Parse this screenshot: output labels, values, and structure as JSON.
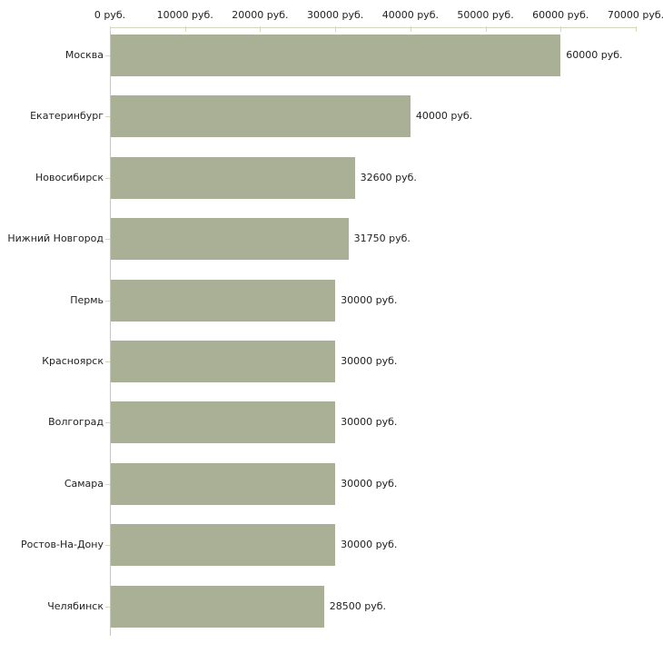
{
  "chart_data": {
    "type": "bar",
    "orientation": "horizontal",
    "categories": [
      "Москва",
      "Екатеринбург",
      "Новосибирск",
      "Нижний Новгород",
      "Пермь",
      "Красноярск",
      "Волгоград",
      "Самара",
      "Ростов-На-Дону",
      "Челябинск"
    ],
    "values": [
      60000,
      40000,
      32600,
      31750,
      30000,
      30000,
      30000,
      30000,
      30000,
      28500
    ],
    "value_labels": [
      "60000 руб.",
      "40000 руб.",
      "32600 руб.",
      "31750 руб.",
      "30000 руб.",
      "30000 руб.",
      "30000 руб.",
      "30000 руб.",
      "30000 руб.",
      "28500 руб."
    ],
    "xticks": [
      0,
      10000,
      20000,
      30000,
      40000,
      50000,
      60000,
      70000
    ],
    "xtick_labels": [
      "0 руб.",
      "10000 руб.",
      "20000 руб.",
      "30000 руб.",
      "40000 руб.",
      "50000 руб.",
      "60000 руб.",
      "70000 руб."
    ],
    "xlim": [
      0,
      70000
    ],
    "unit": "руб.",
    "grid": false,
    "legend": false,
    "axis_position": "top",
    "colors": {
      "bar": "#aab096",
      "x_axis_line": "#d6d6bc",
      "y_axis_line": "#c6c6c6",
      "tick": "#d6d6bc",
      "text": "#222222",
      "background": "#ffffff"
    }
  }
}
